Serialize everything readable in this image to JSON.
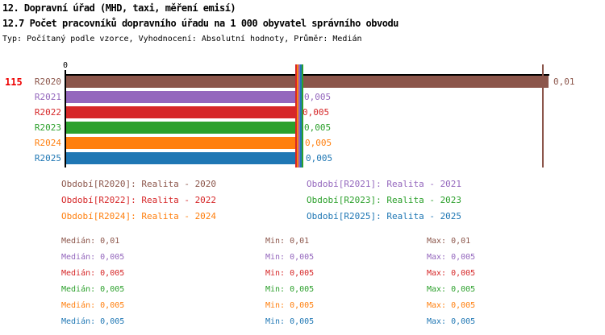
{
  "header": {
    "title_line1": "12. Dopravní úřad (MHD, taxi, měření emisí)",
    "title_line2": "12.7 Počet pracovníků dopravního úřadu na 1 000 obyvatel správního obvodu",
    "meta_line": "Typ: Počítaný podle vzorce, Vyhodnocení: Absolutní hodnoty, Průměr: Medián"
  },
  "chart_data": {
    "type": "bar",
    "orientation": "horizontal",
    "title": "12. Dopravní úřad (MHD, taxi, měření emisí)",
    "subtitle": "12.7 Počet pracovníků dopravního úřadu na 1 000 obyvatel správního obvodu",
    "note": "Typ: Počítaný podle vzorce, Vyhodnocení: Absolutní hodnoty, Průměr: Medián",
    "record_count": "115",
    "record_count_color": "#ee0000",
    "categories": [
      "R2020",
      "R2021",
      "R2022",
      "R2023",
      "R2024",
      "R2025"
    ],
    "values": [
      0.01,
      0.005,
      0.005,
      0.005,
      0.005,
      0.005
    ],
    "value_labels": [
      "0,01",
      "0,005",
      "0,005",
      "0,005",
      "0,005",
      "0,005"
    ],
    "series_colors": [
      "#8c564b",
      "#9467bd",
      "#d62728",
      "#2ca02c",
      "#ff7f0e",
      "#1f77b4"
    ],
    "medians": [
      0.01,
      0.005,
      0.005,
      0.005,
      0.005,
      0.005
    ],
    "mins": [
      0.01,
      0.005,
      0.005,
      0.005,
      0.005,
      0.005
    ],
    "maxs": [
      0.01,
      0.005,
      0.005,
      0.005,
      0.005,
      0.005
    ],
    "xlim": [
      0,
      0.0105
    ],
    "x_ticks": [
      {
        "value": 0,
        "label": "0"
      }
    ],
    "grid": false,
    "legend_position": "bottom"
  },
  "legend": {
    "items": [
      {
        "label": "Období[R2020]: Realita - 2020",
        "color": "#8c564b"
      },
      {
        "label": "Období[R2021]: Realita - 2021",
        "color": "#9467bd"
      },
      {
        "label": "Období[R2022]: Realita - 2022",
        "color": "#d62728"
      },
      {
        "label": "Období[R2023]: Realita - 2023",
        "color": "#2ca02c"
      },
      {
        "label": "Období[R2024]: Realita - 2024",
        "color": "#ff7f0e"
      },
      {
        "label": "Období[R2025]: Realita - 2025",
        "color": "#1f77b4"
      }
    ]
  },
  "stats": {
    "rows": [
      {
        "color": "#8c564b",
        "median": "Medián: 0,01",
        "min": "Min: 0,01",
        "max": "Max: 0,01"
      },
      {
        "color": "#9467bd",
        "median": "Medián: 0,005",
        "min": "Min: 0,005",
        "max": "Max: 0,005"
      },
      {
        "color": "#d62728",
        "median": "Medián: 0,005",
        "min": "Min: 0,005",
        "max": "Max: 0,005"
      },
      {
        "color": "#2ca02c",
        "median": "Medián: 0,005",
        "min": "Min: 0,005",
        "max": "Max: 0,005"
      },
      {
        "color": "#ff7f0e",
        "median": "Medián: 0,005",
        "min": "Min: 0,005",
        "max": "Max: 0,005"
      },
      {
        "color": "#1f77b4",
        "median": "Medián: 0,005",
        "min": "Min: 0,005",
        "max": "Max: 0,005"
      }
    ]
  }
}
